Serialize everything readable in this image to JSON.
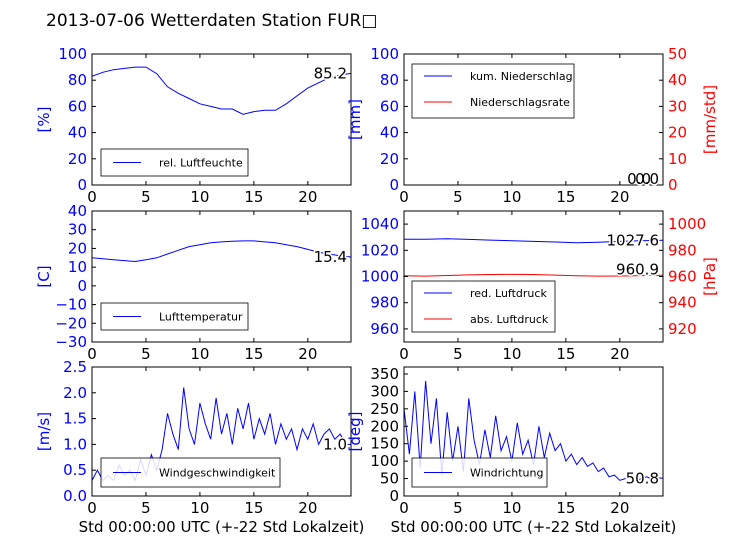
{
  "title": "2013-07-06 Wetterdaten Station FUR□",
  "colors": {
    "blue": "#0000ff",
    "red": "#ff0000",
    "black": "#000000"
  },
  "chart_data": [
    {
      "id": "humidity",
      "type": "line",
      "ylabel": "[%]",
      "ylim": [
        0,
        100
      ],
      "yticks": [
        "0",
        "20",
        "40",
        "60",
        "80",
        "100"
      ],
      "xlim": [
        0,
        24
      ],
      "xticks": [
        "0",
        "5",
        "10",
        "15",
        "20"
      ],
      "series": [
        {
          "name": "rel. Luftfeuchte",
          "color": "#0000ff",
          "x": [
            0,
            1,
            2,
            3,
            4,
            5,
            6,
            7,
            8,
            9,
            10,
            11,
            12,
            13,
            14,
            15,
            16,
            17,
            18,
            19,
            20,
            21,
            22,
            23,
            24
          ],
          "y": [
            83,
            86,
            88,
            89,
            90,
            90,
            85,
            75,
            70,
            66,
            62,
            60,
            58,
            58,
            54,
            56,
            57,
            57,
            62,
            68,
            74,
            78,
            82,
            84,
            85.2
          ]
        }
      ],
      "last_value": "85.2"
    },
    {
      "id": "precip",
      "type": "line",
      "ylabel": "[mm]",
      "ylim": [
        0,
        100
      ],
      "yticks": [
        "0",
        "20",
        "40",
        "60",
        "80",
        "100"
      ],
      "ylabel_right": "[mm/std]",
      "ylim_right": [
        0,
        50
      ],
      "yticks_right": [
        "0",
        "10",
        "20",
        "30",
        "40",
        "50"
      ],
      "xlim": [
        0,
        24
      ],
      "xticks": [
        "0",
        "5",
        "10",
        "15",
        "20"
      ],
      "series": [
        {
          "name": "kum. Niederschlag",
          "color": "#0000ff",
          "x": [
            0,
            24
          ],
          "y": [
            0,
            0
          ]
        },
        {
          "name": "Niederschlagsrate",
          "color": "#ff0000",
          "x": [
            0,
            24
          ],
          "y": [
            0,
            0
          ]
        }
      ],
      "last_value": "0.0",
      "last_value_right": "0.0"
    },
    {
      "id": "temperature",
      "type": "line",
      "ylabel": "[C]",
      "ylim": [
        -30,
        40
      ],
      "yticks": [
        "−30",
        "−20",
        "−10",
        "0",
        "10",
        "20",
        "30",
        "40"
      ],
      "xlim": [
        0,
        24
      ],
      "xticks": [
        "0",
        "5",
        "10",
        "15",
        "20"
      ],
      "series": [
        {
          "name": "Lufttemperatur",
          "color": "#0000ff",
          "x": [
            0,
            1,
            2,
            3,
            4,
            5,
            6,
            7,
            8,
            9,
            10,
            11,
            12,
            13,
            14,
            15,
            16,
            17,
            18,
            19,
            20,
            21,
            22,
            23,
            24
          ],
          "y": [
            15,
            14.5,
            14,
            13.5,
            13,
            14,
            15,
            17,
            19,
            21,
            22,
            23,
            23.5,
            23.8,
            24,
            24,
            23.5,
            23,
            22,
            21,
            19.5,
            18,
            17,
            16,
            15.4
          ]
        }
      ],
      "last_value": "15.4"
    },
    {
      "id": "pressure",
      "type": "line",
      "ylabel_right": "[hPa]",
      "ylim": [
        950,
        1050
      ],
      "yticks": [
        "960",
        "980",
        "1000",
        "1020",
        "1040"
      ],
      "ylim_right": [
        910,
        1010
      ],
      "yticks_right": [
        "920",
        "940",
        "960",
        "980",
        "1000"
      ],
      "xlim": [
        0,
        24
      ],
      "xticks": [
        "0",
        "5",
        "10",
        "15",
        "20"
      ],
      "series": [
        {
          "name": "red. Luftdruck",
          "color": "#0000ff",
          "x": [
            0,
            2,
            4,
            6,
            8,
            10,
            12,
            14,
            16,
            18,
            20,
            22,
            24
          ],
          "y": [
            1028.5,
            1028.5,
            1028.8,
            1028.3,
            1027.8,
            1027.3,
            1026.8,
            1026.3,
            1025.8,
            1026.2,
            1026.8,
            1027.3,
            1027.6
          ]
        },
        {
          "name": "abs. Luftdruck",
          "color": "#ff0000",
          "x": [
            0,
            2,
            4,
            6,
            8,
            10,
            12,
            14,
            16,
            18,
            20,
            22,
            24
          ],
          "y": [
            960.5,
            960.3,
            960.8,
            961.2,
            961.5,
            961.6,
            961.5,
            961.1,
            960.6,
            960.3,
            960.4,
            960.7,
            960.9
          ]
        }
      ],
      "last_value": "1027.6",
      "last_value_right": "960.9"
    },
    {
      "id": "windspeed",
      "type": "line",
      "ylabel": "[m/s]",
      "xlabel": "Std 00:00:00 UTC (+-22 Std Lokalzeit)",
      "ylim": [
        0,
        2.5
      ],
      "yticks": [
        "0.0",
        "0.5",
        "1.0",
        "1.5",
        "2.0",
        "2.5"
      ],
      "xlim": [
        0,
        24
      ],
      "xticks": [
        "0",
        "5",
        "10",
        "15",
        "20"
      ],
      "series": [
        {
          "name": "Windgeschwindigkeit",
          "color": "#0000ff",
          "x": [
            0,
            0.5,
            1,
            1.5,
            2,
            2.5,
            3,
            3.5,
            4,
            4.5,
            5,
            5.5,
            6,
            6.5,
            7,
            7.5,
            8,
            8.5,
            9,
            9.5,
            10,
            10.5,
            11,
            11.5,
            12,
            12.5,
            13,
            13.5,
            14,
            14.5,
            15,
            15.5,
            16,
            16.5,
            17,
            17.5,
            18,
            18.5,
            19,
            19.5,
            20,
            20.5,
            21,
            21.5,
            22,
            22.5,
            23,
            23.5,
            24
          ],
          "y": [
            0.3,
            0.5,
            0.3,
            0.4,
            0.3,
            0.6,
            0.4,
            0.5,
            0.3,
            0.7,
            0.4,
            0.8,
            0.5,
            0.9,
            1.6,
            1.2,
            0.9,
            2.1,
            1.3,
            1.0,
            1.8,
            1.4,
            1.1,
            1.9,
            1.2,
            1.6,
            1.0,
            1.7,
            1.3,
            1.8,
            1.1,
            1.5,
            1.2,
            1.6,
            1.0,
            1.4,
            1.1,
            1.3,
            0.9,
            1.3,
            1.1,
            1.4,
            1.0,
            1.2,
            1.3,
            1.1,
            1.2,
            1.0,
            1.0
          ]
        }
      ],
      "last_value": "1.0"
    },
    {
      "id": "winddir",
      "type": "line",
      "ylabel": "[deg]",
      "xlabel": "Std 00:00:00 UTC (+-22 Std Lokalzeit)",
      "ylim": [
        0,
        370
      ],
      "yticks": [
        "0",
        "50",
        "100",
        "150",
        "200",
        "250",
        "300",
        "350"
      ],
      "xlim": [
        0,
        24
      ],
      "xticks": [
        "0",
        "5",
        "10",
        "15",
        "20"
      ],
      "series": [
        {
          "name": "Windrichtung",
          "color": "#0000ff",
          "x": [
            0,
            0.5,
            1,
            1.5,
            2,
            2.5,
            3,
            3.5,
            4,
            4.5,
            5,
            5.5,
            6,
            6.5,
            7,
            7.5,
            8,
            8.5,
            9,
            9.5,
            10,
            10.5,
            11,
            11.5,
            12,
            12.5,
            13,
            13.5,
            14,
            14.5,
            15,
            15.5,
            16,
            16.5,
            17,
            17.5,
            18,
            18.5,
            19,
            19.5,
            20,
            20.5,
            21,
            21.5,
            22,
            22.5,
            23,
            23.5,
            24
          ],
          "y": [
            250,
            120,
            300,
            80,
            330,
            150,
            280,
            60,
            240,
            100,
            200,
            70,
            280,
            160,
            90,
            190,
            110,
            230,
            130,
            170,
            100,
            210,
            120,
            160,
            90,
            200,
            110,
            180,
            130,
            150,
            100,
            120,
            90,
            110,
            85,
            95,
            70,
            80,
            55,
            60,
            45,
            50,
            55,
            45,
            50,
            55,
            48,
            52,
            50.8
          ]
        }
      ],
      "last_value": "50.8"
    }
  ]
}
